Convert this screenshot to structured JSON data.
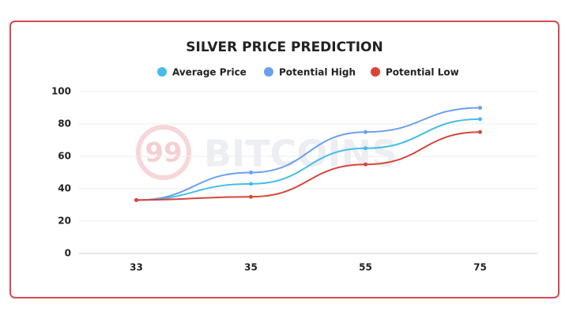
{
  "chart_data": {
    "type": "line",
    "title": "SILVER PRICE PREDICTION",
    "watermark_logo": "99",
    "watermark": "BITCOINS",
    "categories": [
      "33",
      "35",
      "55",
      "75"
    ],
    "series": [
      {
        "name": "Average Price",
        "color": "#46bde8",
        "values": [
          33,
          43,
          65,
          83
        ]
      },
      {
        "name": "Potential High",
        "color": "#6b9ff0",
        "values": [
          33,
          50,
          75,
          90
        ]
      },
      {
        "name": "Potential Low",
        "color": "#d6463a",
        "values": [
          33,
          35,
          55,
          75
        ]
      }
    ],
    "ylim": [
      0,
      100
    ],
    "yticks": [
      0,
      20,
      40,
      60,
      80,
      100
    ],
    "grid": true,
    "legend": "top"
  }
}
